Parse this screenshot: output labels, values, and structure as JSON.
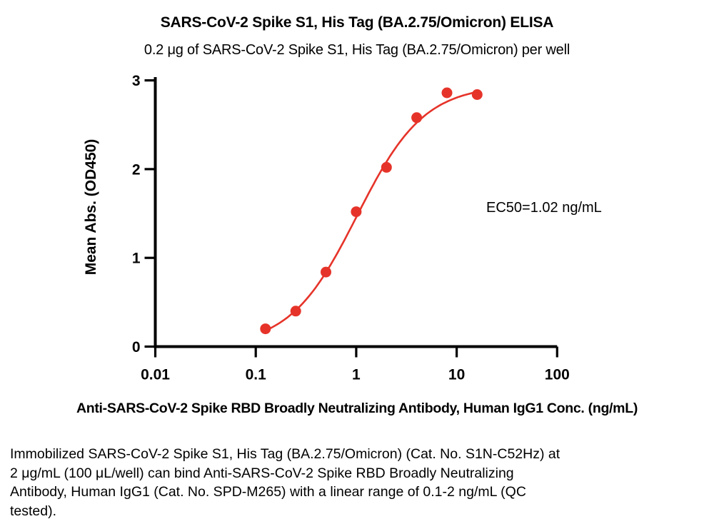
{
  "figure": {
    "title": "SARS-CoV-2 Spike S1, His Tag (BA.2.75/Omicron) ELISA",
    "subtitle": "0.2 μg of SARS-CoV-2 Spike S1, His Tag (BA.2.75/Omicron) per well",
    "caption_lines": [
      "Immobilized SARS-CoV-2 Spike S1, His Tag (BA.2.75/Omicron) (Cat. No. S1N-C52Hz) at",
      "2 μg/mL (100 μL/well) can bind Anti-SARS-CoV-2 Spike RBD Broadly Neutralizing",
      "Antibody, Human IgG1 (Cat. No. SPD-M265) with a linear range of 0.1-2 ng/mL (QC",
      "tested)."
    ]
  },
  "colors": {
    "curve": "#e63329",
    "axis": "#000000",
    "text": "#000000",
    "background": "#ffffff"
  },
  "chart_data": {
    "type": "scatter",
    "x_scale": "log10",
    "x": [
      0.125,
      0.25,
      0.5,
      1,
      2,
      4,
      8,
      16
    ],
    "y": [
      0.2,
      0.4,
      0.84,
      1.52,
      2.02,
      2.58,
      2.86,
      2.84
    ],
    "xlabel": "Anti-SARS-CoV-2 Spike RBD Broadly Neutralizing Antibody, Human IgG1 Conc. (ng/mL)",
    "ylabel": "Mean Abs. (OD450)",
    "xlim": [
      0.01,
      100
    ],
    "ylim": [
      0,
      3
    ],
    "x_ticks": [
      0.01,
      0.1,
      1,
      10,
      100
    ],
    "x_tick_labels": [
      "0.01",
      "0.1",
      "1",
      "10",
      "100"
    ],
    "y_ticks": [
      0,
      1,
      2,
      3
    ],
    "y_tick_labels": [
      "0",
      "1",
      "2",
      "3"
    ],
    "grid": false,
    "legend": false,
    "annotation": "EC50=1.02 ng/mL",
    "fit": {
      "model": "4PL",
      "bottom": 0,
      "top": 2.95,
      "ec50": 1.02,
      "hill": 1.3,
      "curve_x_range": [
        0.118,
        16.8
      ]
    }
  }
}
